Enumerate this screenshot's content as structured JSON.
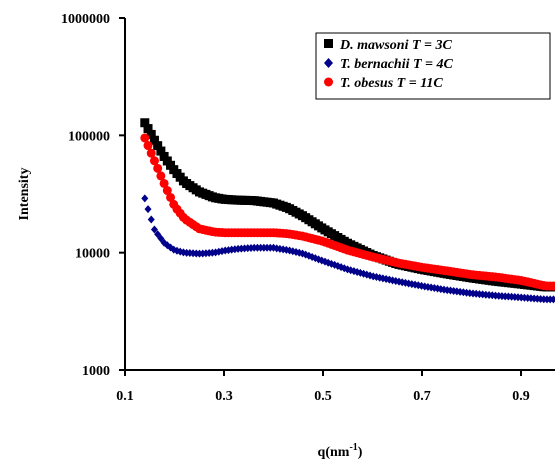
{
  "chart_data": {
    "type": "scatter",
    "title": "",
    "xlabel": "q(nm",
    "xlabel_sup": "-1",
    "xlabel_tail": ")",
    "ylabel": "Intensity",
    "x_range": [
      0.1,
      0.97
    ],
    "ylim": [
      1000,
      1000000
    ],
    "y_scale": "log",
    "x_ticks": [
      0.1,
      0.3,
      0.5,
      0.7,
      0.9
    ],
    "x_tick_labels": [
      "0.1",
      "0.3",
      "0.5",
      "0.7",
      "0.9"
    ],
    "y_ticks": [
      1000,
      10000,
      100000,
      1000000
    ],
    "y_tick_labels": [
      "1000",
      "10000",
      "100000",
      "1000000"
    ],
    "grid": false,
    "legend_position": "top-right",
    "series": [
      {
        "name": "D. mawsoni T = 3C",
        "marker": "square",
        "color": "#000000",
        "x": [
          0.14,
          0.16,
          0.18,
          0.2,
          0.22,
          0.25,
          0.28,
          0.3,
          0.33,
          0.36,
          0.4,
          0.43,
          0.46,
          0.5,
          0.55,
          0.6,
          0.65,
          0.7,
          0.75,
          0.8,
          0.85,
          0.9,
          0.95
        ],
        "y": [
          128000,
          90000,
          65000,
          50000,
          40000,
          33000,
          29500,
          28500,
          28000,
          27800,
          26500,
          24000,
          20500,
          16000,
          12000,
          9500,
          8000,
          7200,
          6600,
          6100,
          5700,
          5400,
          5100
        ]
      },
      {
        "name": "T. bernachii T = 4C",
        "marker": "diamond",
        "color": "#00008b",
        "x": [
          0.14,
          0.15,
          0.16,
          0.18,
          0.2,
          0.22,
          0.25,
          0.28,
          0.3,
          0.33,
          0.36,
          0.4,
          0.43,
          0.46,
          0.5,
          0.55,
          0.6,
          0.65,
          0.7,
          0.75,
          0.8,
          0.85,
          0.9,
          0.95
        ],
        "y": [
          29000,
          21000,
          15500,
          12000,
          10500,
          10000,
          9800,
          10000,
          10400,
          10800,
          11000,
          11000,
          10500,
          9800,
          8500,
          7200,
          6300,
          5700,
          5200,
          4800,
          4500,
          4300,
          4150,
          4000
        ]
      },
      {
        "name": "T. obesus T = 11C",
        "marker": "circle",
        "color": "#ff0000",
        "x": [
          0.14,
          0.16,
          0.18,
          0.2,
          0.22,
          0.25,
          0.28,
          0.3,
          0.33,
          0.36,
          0.4,
          0.43,
          0.46,
          0.5,
          0.55,
          0.6,
          0.65,
          0.7,
          0.75,
          0.8,
          0.85,
          0.9,
          0.95
        ],
        "y": [
          95000,
          60000,
          38000,
          25000,
          19500,
          16000,
          15000,
          14800,
          14800,
          14800,
          14800,
          14500,
          13800,
          12500,
          10500,
          9200,
          8200,
          7500,
          7000,
          6500,
          6200,
          5800,
          5200
        ]
      }
    ]
  }
}
